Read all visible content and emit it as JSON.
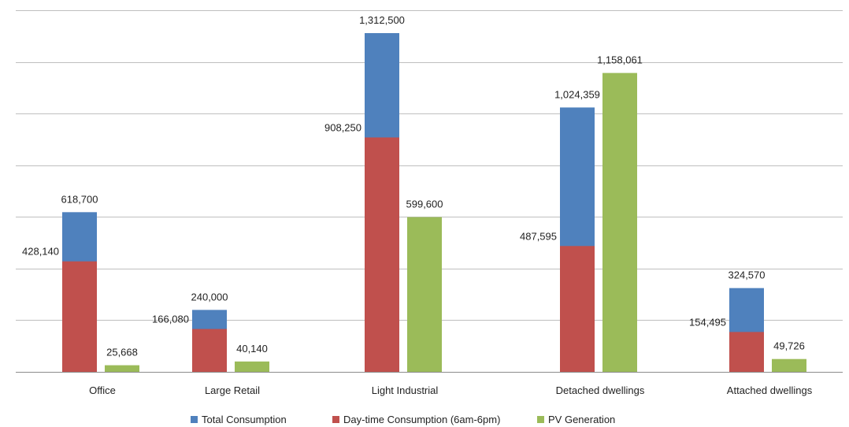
{
  "chart_data": {
    "type": "bar",
    "categories": [
      "Office",
      "Large Retail",
      "Light Industrial",
      "Detached dwellings",
      "Attached dwellings"
    ],
    "series": [
      {
        "name": "Total Consumption",
        "color": "#4f81bd",
        "values": [
          618700,
          240000,
          1312500,
          1024359,
          324570
        ],
        "value_labels": [
          "618,700",
          "240,000",
          "1,312,500",
          "1,024,359",
          "324,570"
        ]
      },
      {
        "name": "Day-time Consumption (6am-6pm)",
        "color": "#c0504d",
        "values": [
          428140,
          166080,
          908250,
          487595,
          154495
        ],
        "value_labels": [
          "428,140",
          "166,080",
          "908,250",
          "487,595",
          "154,495"
        ]
      },
      {
        "name": "PV Generation",
        "color": "#9bbb59",
        "values": [
          25668,
          40140,
          599600,
          1158061,
          49726
        ],
        "value_labels": [
          "25,668",
          "40,140",
          "599,600",
          "1,158,061",
          "49,726"
        ]
      }
    ],
    "overlap": "Day-time Consumption overlaps Total Consumption in the same bar",
    "ylim": [
      0,
      1400000
    ],
    "y_gridline_step": 200000,
    "grid": true,
    "legend": "bottom",
    "title": "",
    "xlabel": "",
    "ylabel": ""
  }
}
